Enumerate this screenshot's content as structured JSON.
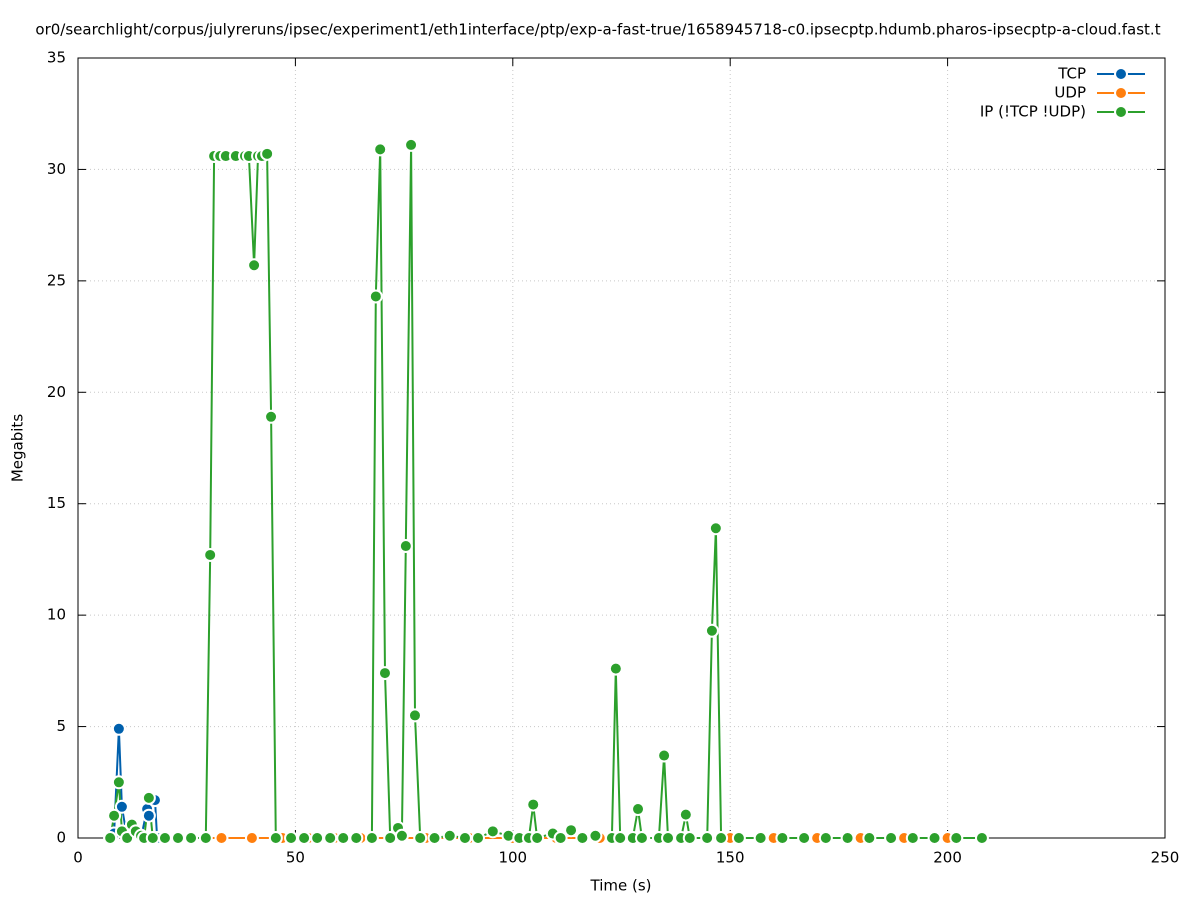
{
  "chart_data": {
    "type": "line",
    "title": "or0/searchlight/corpus/julyreruns/ipsec/experiment1/eth1interface/ptp/exp-a-fast-true/1658945718-c0.ipsecptp.hdumb.pharos-ipsecptp-a-cloud.fast.t",
    "xlabel": "Time (s)",
    "ylabel": "Megabits",
    "xlim": [
      0,
      250
    ],
    "xticks": [
      0,
      50,
      100,
      150,
      200,
      250
    ],
    "ylim": [
      0,
      35
    ],
    "yticks": [
      0,
      5,
      10,
      15,
      20,
      25,
      30,
      35
    ],
    "grid": true,
    "legend": "top-right",
    "series": [
      {
        "name": "TCP",
        "color": "#0060ad",
        "x": [
          7.4,
          8.3,
          9.4,
          10.1,
          11.3,
          12.4,
          13.3,
          14.5,
          15.9,
          16.3,
          17.7,
          18.2
        ],
        "values": [
          0,
          0.2,
          4.9,
          1.4,
          0,
          0.5,
          0.2,
          0,
          1.3,
          1.0,
          1.7,
          0
        ]
      },
      {
        "name": "UDP",
        "color": "#ff7f0e",
        "x": [
          20,
          26,
          33,
          40,
          47,
          53,
          59,
          65,
          72,
          80,
          90,
          100,
          110,
          120,
          130,
          140,
          150,
          160,
          170,
          180,
          190,
          200
        ],
        "values": [
          0,
          0,
          0,
          0,
          0,
          0,
          0,
          0,
          0,
          0,
          0,
          0,
          0,
          0,
          0,
          0,
          0,
          0,
          0,
          0,
          0,
          0
        ]
      },
      {
        "name": "IP (!TCP  !UDP)",
        "color": "#2ca02c",
        "x": [
          7.4,
          8.3,
          9.4,
          10.1,
          11.3,
          12.4,
          13.3,
          14.5,
          15.2,
          16.3,
          17.2,
          20,
          23,
          26,
          29.4,
          30.4,
          31.3,
          32.7,
          34.0,
          36.3,
          38.4,
          39.3,
          40.5,
          41.4,
          42.3,
          43.5,
          44.4,
          45.5,
          49,
          52,
          55,
          58,
          61,
          64,
          67.6,
          68.5,
          69.5,
          70.6,
          71.8,
          73.6,
          74.5,
          75.4,
          76.6,
          77.5,
          78.7,
          82,
          85.5,
          89,
          92,
          95.4,
          99,
          101.5,
          103.7,
          104.7,
          105.6,
          109.2,
          111,
          113.4,
          116,
          119,
          122.8,
          123.7,
          124.7,
          127.6,
          128.8,
          129.7,
          133.6,
          134.8,
          135.7,
          138.7,
          139.8,
          140.7,
          144.7,
          145.8,
          146.7,
          147.9,
          152,
          157,
          162,
          167,
          172,
          177,
          182,
          187,
          192,
          197,
          202,
          207.9
        ],
        "values": [
          0,
          1.0,
          2.5,
          0.3,
          0,
          0.6,
          0.3,
          0.1,
          0,
          1.8,
          0,
          0,
          0,
          0,
          0,
          12.7,
          30.6,
          30.6,
          30.6,
          30.6,
          30.6,
          30.6,
          25.7,
          30.6,
          30.6,
          30.7,
          18.9,
          0,
          0,
          0,
          0,
          0,
          0,
          0,
          0,
          24.3,
          30.9,
          7.4,
          0,
          0.45,
          0.1,
          13.1,
          31.1,
          5.5,
          0,
          0,
          0.1,
          0,
          0,
          0.3,
          0.1,
          0,
          0,
          1.5,
          0,
          0.2,
          0,
          0.35,
          0,
          0.1,
          0,
          7.6,
          0,
          0,
          1.3,
          0,
          0,
          3.7,
          0,
          0,
          1.05,
          0,
          0,
          9.3,
          13.9,
          0,
          0,
          0,
          0,
          0,
          0,
          0,
          0,
          0,
          0,
          0,
          0,
          0
        ]
      }
    ]
  }
}
